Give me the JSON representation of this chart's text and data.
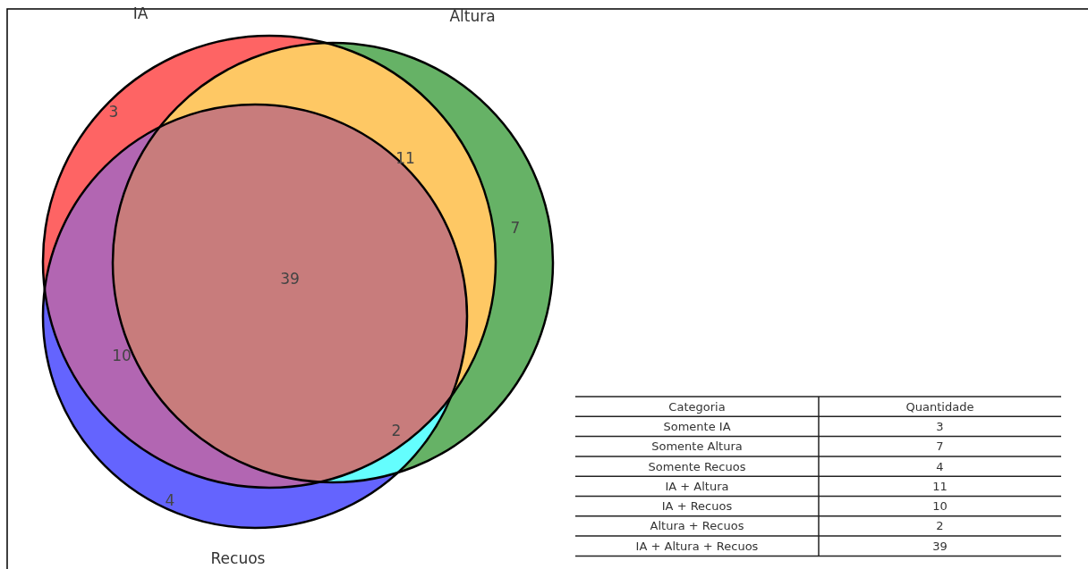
{
  "chart_data": [
    {
      "type": "other",
      "colors": [
        "#fe6464",
        "#66b266",
        "#6464fe",
        "#fec864",
        "#b266b2",
        "#64fefe",
        "#c87c7c"
      ],
      "annotations": [
        "IA",
        "Altura",
        "Recuos",
        "3",
        "7",
        "4",
        "11",
        "10",
        "2",
        "39"
      ]
    },
    {
      "type": "other",
      "categories": [
        "Somente IA",
        "Somente Altura",
        "Somente Recuos",
        "IA + Altura",
        "IA + Recuos",
        "Altura + Recuos",
        "IA + Altura + Recuos"
      ],
      "values": [
        3,
        7,
        4,
        11,
        10,
        2,
        39
      ],
      "data_labels": true,
      "annotations": [
        "Categoria",
        "Quantidade"
      ]
    }
  ]
}
